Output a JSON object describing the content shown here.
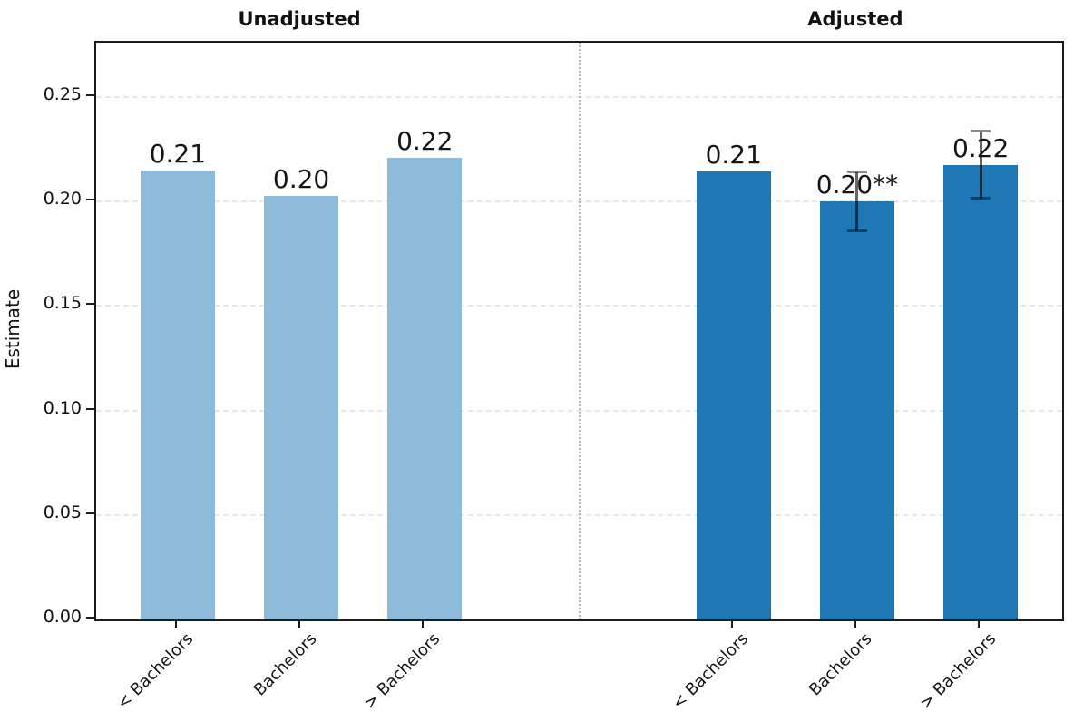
{
  "chart_data": {
    "type": "bar",
    "title": "",
    "xlabel": "",
    "ylabel": "Estimate",
    "ylim": [
      0,
      0.276
    ],
    "xlim": [
      -0.66,
      7.16
    ],
    "grid": "horizontal dashed lines at y ticks, drawn behind bars",
    "legend": "none",
    "y_ticks": [
      {
        "value": 0.0,
        "label": "0.00"
      },
      {
        "value": 0.05,
        "label": "0.05"
      },
      {
        "value": 0.1,
        "label": "0.10"
      },
      {
        "value": 0.15,
        "label": "0.15"
      },
      {
        "value": 0.2,
        "label": "0.20"
      },
      {
        "value": 0.25,
        "label": "0.25"
      }
    ],
    "categories": [
      "< Bachelors",
      "Bachelors",
      "> Bachelors"
    ],
    "panel_divider_x": 3.25,
    "bar_width": 0.6,
    "panels": [
      {
        "title": "Unadjusted",
        "bar_color": "#8fbbda",
        "bars": [
          {
            "category": "< Bachelors",
            "x": 0,
            "value": 0.215,
            "label": "0.21",
            "ci_low": null,
            "ci_high": null
          },
          {
            "category": "Bachelors",
            "x": 1,
            "value": 0.2025,
            "label": "0.20",
            "ci_low": null,
            "ci_high": null
          },
          {
            "category": "> Bachelors",
            "x": 2,
            "value": 0.221,
            "label": "0.22",
            "ci_low": null,
            "ci_high": null
          }
        ]
      },
      {
        "title": "Adjusted",
        "bar_color": "#1f77b4",
        "bars": [
          {
            "category": "< Bachelors",
            "x": 4.5,
            "value": 0.2145,
            "label": "0.21",
            "ci_low": null,
            "ci_high": null
          },
          {
            "category": "Bachelors",
            "x": 5.5,
            "value": 0.2,
            "label": "0.20**",
            "ci_low": 0.186,
            "ci_high": 0.214
          },
          {
            "category": "> Bachelors",
            "x": 6.5,
            "value": 0.2175,
            "label": "0.22",
            "ci_low": 0.2015,
            "ci_high": 0.2335
          }
        ]
      }
    ],
    "colors": {
      "unadjusted_bar": "#8fbbda",
      "adjusted_bar": "#1f77b4",
      "spine": "#1c1c1c",
      "gridline": "#e7e7e7",
      "panel_divider": "#b9b9b9",
      "error_bar": "rgba(0,0,0,0.60)",
      "text": "#111111"
    }
  }
}
